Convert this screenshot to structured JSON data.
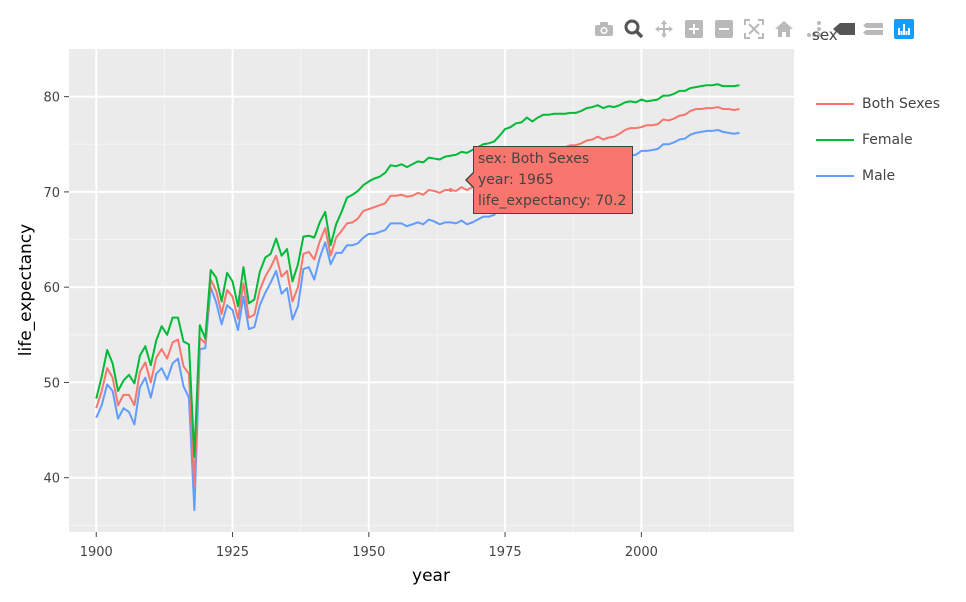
{
  "chart_data": {
    "type": "line",
    "xlabel": "year",
    "ylabel": "life_expectancy",
    "xlim": [
      1895,
      2028
    ],
    "ylim": [
      34.3,
      85
    ],
    "xticks": [
      1900,
      1925,
      1950,
      1975,
      2000
    ],
    "yticks": [
      40,
      50,
      60,
      70,
      80
    ],
    "grid": true,
    "legend_title": "sex",
    "legend_position": "right",
    "series": [
      {
        "name": "Both Sexes",
        "color": "#f8766d",
        "x": [
          1900,
          1901,
          1902,
          1903,
          1904,
          1905,
          1906,
          1907,
          1908,
          1909,
          1910,
          1911,
          1912,
          1913,
          1914,
          1915,
          1916,
          1917,
          1918,
          1919,
          1920,
          1921,
          1922,
          1923,
          1924,
          1925,
          1926,
          1927,
          1928,
          1929,
          1930,
          1931,
          1932,
          1933,
          1934,
          1935,
          1936,
          1937,
          1938,
          1939,
          1940,
          1941,
          1942,
          1943,
          1944,
          1945,
          1946,
          1947,
          1948,
          1949,
          1950,
          1951,
          1952,
          1953,
          1954,
          1955,
          1956,
          1957,
          1958,
          1959,
          1960,
          1961,
          1962,
          1963,
          1964,
          1965,
          1966,
          1967,
          1968,
          1969,
          1970,
          1971,
          1972,
          1973,
          1974,
          1975,
          1976,
          1977,
          1978,
          1979,
          1980,
          1981,
          1982,
          1983,
          1984,
          1985,
          1986,
          1987,
          1988,
          1989,
          1990,
          1991,
          1992,
          1993,
          1994,
          1995,
          1996,
          1997,
          1998,
          1999,
          2000,
          2001,
          2002,
          2003,
          2004,
          2005,
          2006,
          2007,
          2008,
          2009,
          2010,
          2011,
          2012,
          2013,
          2014,
          2015,
          2016,
          2017,
          2018
        ],
        "y": [
          47.3,
          49.1,
          51.5,
          50.5,
          47.6,
          48.7,
          48.7,
          47.6,
          51.1,
          52.1,
          50.0,
          52.6,
          53.5,
          52.5,
          54.2,
          54.5,
          51.7,
          50.9,
          39.1,
          54.7,
          54.1,
          60.8,
          59.6,
          57.2,
          59.7,
          59.0,
          56.7,
          60.4,
          56.8,
          57.1,
          59.7,
          61.1,
          62.1,
          63.3,
          61.1,
          61.7,
          58.5,
          60.0,
          63.5,
          63.7,
          62.9,
          64.8,
          66.2,
          63.3,
          65.2,
          65.9,
          66.7,
          66.8,
          67.2,
          68.0,
          68.2,
          68.4,
          68.6,
          68.8,
          69.6,
          69.6,
          69.7,
          69.5,
          69.6,
          69.9,
          69.7,
          70.2,
          70.1,
          69.9,
          70.2,
          70.2,
          70.1,
          70.5,
          70.2,
          70.5,
          70.8,
          71.1,
          71.2,
          71.4,
          72.0,
          72.6,
          72.9,
          73.3,
          73.5,
          73.9,
          73.7,
          74.1,
          74.5,
          74.6,
          74.7,
          74.7,
          74.7,
          74.9,
          74.9,
          75.1,
          75.4,
          75.5,
          75.8,
          75.5,
          75.7,
          75.8,
          76.1,
          76.5,
          76.7,
          76.7,
          76.8,
          77.0,
          77.0,
          77.1,
          77.6,
          77.5,
          77.7,
          78.0,
          78.1,
          78.5,
          78.7,
          78.7,
          78.8,
          78.8,
          78.9,
          78.7,
          78.7,
          78.6,
          78.7
        ]
      },
      {
        "name": "Female",
        "color": "#00ba38",
        "x": [
          1900,
          1901,
          1902,
          1903,
          1904,
          1905,
          1906,
          1907,
          1908,
          1909,
          1910,
          1911,
          1912,
          1913,
          1914,
          1915,
          1916,
          1917,
          1918,
          1919,
          1920,
          1921,
          1922,
          1923,
          1924,
          1925,
          1926,
          1927,
          1928,
          1929,
          1930,
          1931,
          1932,
          1933,
          1934,
          1935,
          1936,
          1937,
          1938,
          1939,
          1940,
          1941,
          1942,
          1943,
          1944,
          1945,
          1946,
          1947,
          1948,
          1949,
          1950,
          1951,
          1952,
          1953,
          1954,
          1955,
          1956,
          1957,
          1958,
          1959,
          1960,
          1961,
          1962,
          1963,
          1964,
          1965,
          1966,
          1967,
          1968,
          1969,
          1970,
          1971,
          1972,
          1973,
          1974,
          1975,
          1976,
          1977,
          1978,
          1979,
          1980,
          1981,
          1982,
          1983,
          1984,
          1985,
          1986,
          1987,
          1988,
          1989,
          1990,
          1991,
          1992,
          1993,
          1994,
          1995,
          1996,
          1997,
          1998,
          1999,
          2000,
          2001,
          2002,
          2003,
          2004,
          2005,
          2006,
          2007,
          2008,
          2009,
          2010,
          2011,
          2012,
          2013,
          2014,
          2015,
          2016,
          2017,
          2018
        ],
        "y": [
          48.3,
          50.6,
          53.4,
          52.0,
          49.1,
          50.2,
          50.8,
          49.9,
          52.8,
          53.8,
          51.8,
          54.4,
          55.9,
          55.0,
          56.8,
          56.8,
          54.3,
          54.0,
          42.2,
          56.0,
          54.6,
          61.8,
          61.0,
          58.5,
          61.5,
          60.6,
          58.0,
          62.1,
          58.3,
          58.7,
          61.6,
          63.1,
          63.5,
          65.1,
          63.3,
          64.0,
          60.6,
          62.4,
          65.3,
          65.4,
          65.2,
          66.8,
          67.9,
          64.4,
          66.6,
          67.9,
          69.4,
          69.7,
          70.1,
          70.7,
          71.1,
          71.4,
          71.6,
          72.0,
          72.8,
          72.7,
          72.9,
          72.6,
          72.9,
          73.2,
          73.1,
          73.6,
          73.5,
          73.4,
          73.7,
          73.8,
          73.9,
          74.2,
          74.1,
          74.4,
          74.7,
          75.0,
          75.1,
          75.3,
          75.9,
          76.6,
          76.8,
          77.2,
          77.3,
          77.8,
          77.4,
          77.8,
          78.1,
          78.1,
          78.2,
          78.2,
          78.2,
          78.3,
          78.3,
          78.5,
          78.8,
          78.9,
          79.1,
          78.8,
          79.0,
          78.9,
          79.1,
          79.4,
          79.5,
          79.4,
          79.7,
          79.5,
          79.6,
          79.7,
          80.1,
          80.1,
          80.3,
          80.6,
          80.6,
          80.9,
          81.0,
          81.1,
          81.2,
          81.2,
          81.3,
          81.1,
          81.1,
          81.1,
          81.2
        ]
      },
      {
        "name": "Male",
        "color": "#619cff",
        "x": [
          1900,
          1901,
          1902,
          1903,
          1904,
          1905,
          1906,
          1907,
          1908,
          1909,
          1910,
          1911,
          1912,
          1913,
          1914,
          1915,
          1916,
          1917,
          1918,
          1919,
          1920,
          1921,
          1922,
          1923,
          1924,
          1925,
          1926,
          1927,
          1928,
          1929,
          1930,
          1931,
          1932,
          1933,
          1934,
          1935,
          1936,
          1937,
          1938,
          1939,
          1940,
          1941,
          1942,
          1943,
          1944,
          1945,
          1946,
          1947,
          1948,
          1949,
          1950,
          1951,
          1952,
          1953,
          1954,
          1955,
          1956,
          1957,
          1958,
          1959,
          1960,
          1961,
          1962,
          1963,
          1964,
          1965,
          1966,
          1967,
          1968,
          1969,
          1970,
          1971,
          1972,
          1973,
          1974,
          1975,
          1976,
          1977,
          1978,
          1979,
          1980,
          1981,
          1982,
          1983,
          1984,
          1985,
          1986,
          1987,
          1988,
          1989,
          1990,
          1991,
          1992,
          1993,
          1994,
          1995,
          1996,
          1997,
          1998,
          1999,
          2000,
          2001,
          2002,
          2003,
          2004,
          2005,
          2006,
          2007,
          2008,
          2009,
          2010,
          2011,
          2012,
          2013,
          2014,
          2015,
          2016,
          2017,
          2018
        ],
        "y": [
          46.3,
          47.6,
          49.8,
          49.1,
          46.2,
          47.3,
          46.9,
          45.6,
          49.5,
          50.5,
          48.4,
          50.9,
          51.5,
          50.3,
          52.0,
          52.5,
          49.6,
          48.4,
          36.6,
          53.5,
          53.6,
          60.0,
          58.4,
          56.1,
          58.1,
          57.6,
          55.5,
          59.0,
          55.6,
          55.8,
          58.1,
          59.4,
          60.5,
          61.7,
          59.3,
          59.9,
          56.6,
          58.0,
          61.9,
          62.1,
          60.8,
          63.1,
          64.7,
          62.4,
          63.6,
          63.6,
          64.4,
          64.4,
          64.6,
          65.2,
          65.6,
          65.6,
          65.8,
          66.0,
          66.7,
          66.7,
          66.7,
          66.4,
          66.6,
          66.8,
          66.6,
          67.1,
          66.9,
          66.6,
          66.8,
          66.8,
          66.7,
          67.0,
          66.6,
          66.8,
          67.1,
          67.4,
          67.4,
          67.6,
          68.2,
          68.8,
          69.1,
          69.5,
          69.6,
          70.0,
          70.0,
          70.4,
          70.8,
          71.0,
          71.1,
          71.1,
          71.2,
          71.4,
          71.4,
          71.7,
          71.8,
          72.0,
          72.3,
          72.2,
          72.4,
          72.5,
          73.0,
          73.5,
          73.8,
          73.9,
          74.3,
          74.3,
          74.4,
          74.5,
          75.0,
          75.0,
          75.2,
          75.5,
          75.6,
          76.0,
          76.2,
          76.3,
          76.4,
          76.4,
          76.5,
          76.3,
          76.2,
          76.1,
          76.2
        ]
      }
    ],
    "hover": {
      "lines": [
        "sex: Both Sexes",
        "year: 1965",
        "life_expectancy: 70.2"
      ],
      "color": "#f8766d",
      "x": 1965,
      "y": 70.2
    }
  },
  "toolbar": [
    {
      "name": "camera-icon"
    },
    {
      "name": "zoom-icon"
    },
    {
      "name": "pan-icon"
    },
    {
      "name": "zoom-in-icon"
    },
    {
      "name": "zoom-out-icon"
    },
    {
      "name": "autoscale-icon"
    },
    {
      "name": "home-icon"
    },
    {
      "name": "spike-lines-icon"
    },
    {
      "name": "hover-closest-icon"
    },
    {
      "name": "hover-compare-icon"
    },
    {
      "name": "plotly-logo-icon"
    }
  ]
}
